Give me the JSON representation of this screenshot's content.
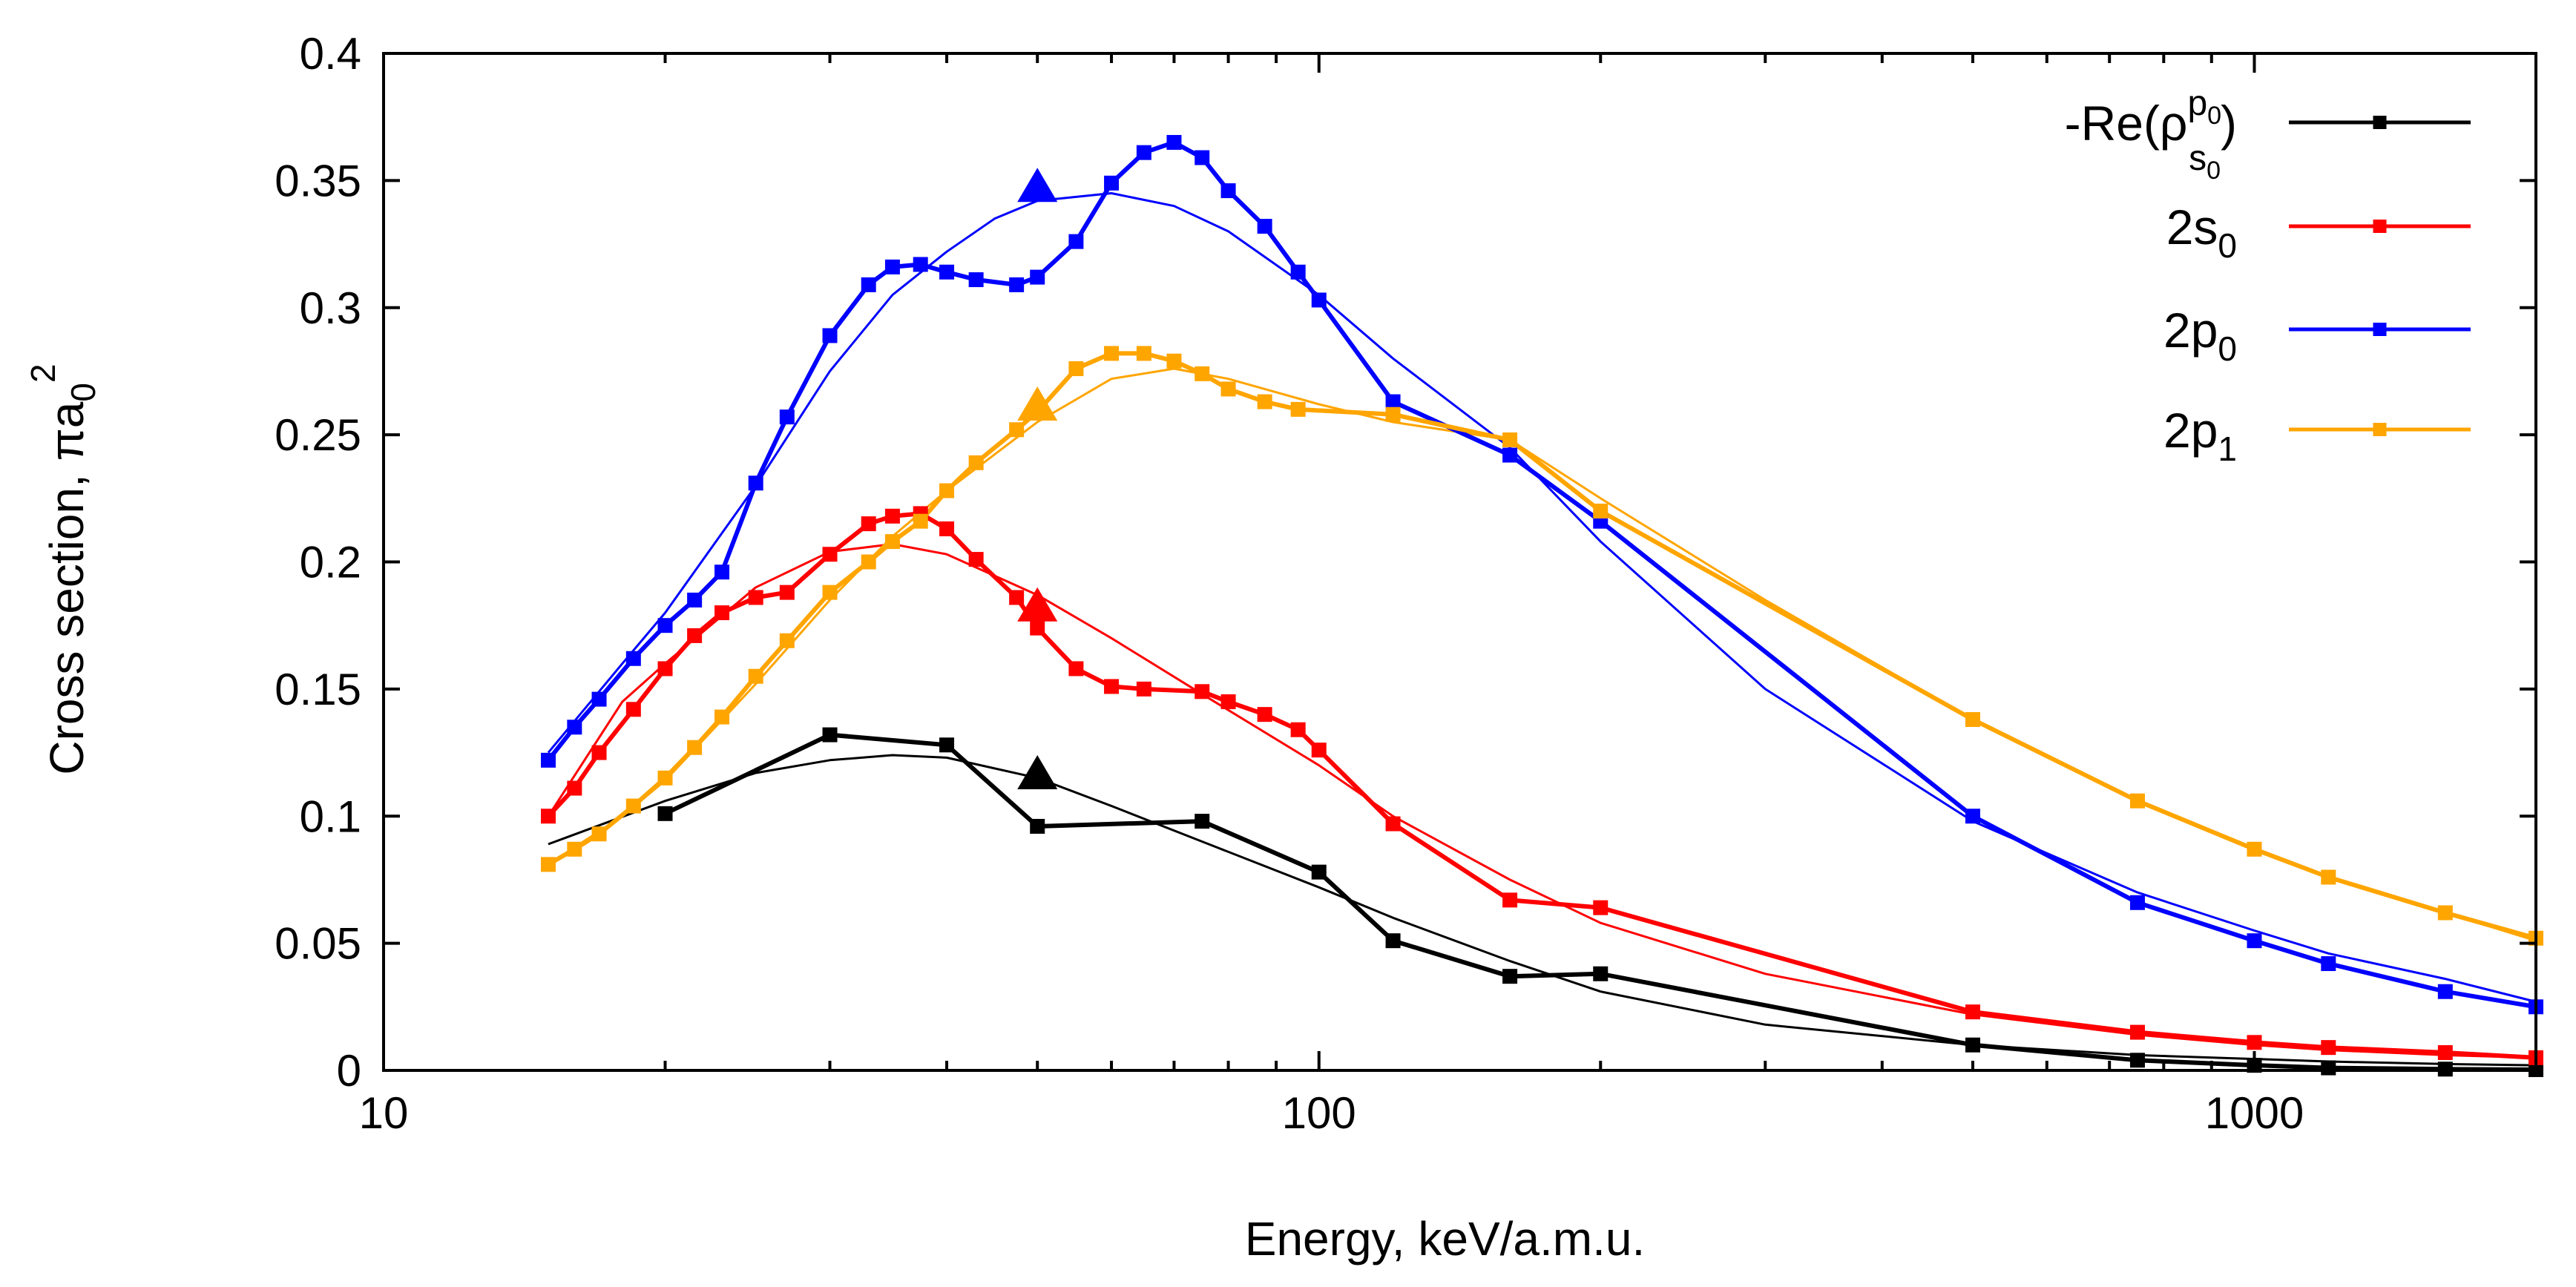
{
  "chart_data": {
    "type": "line",
    "title": "",
    "xlabel": "Energy, keV/a.m.u.",
    "ylabel_text": "Cross section, πa",
    "ylabel_sub": "0",
    "ylabel_sup": "2",
    "xscale": "log",
    "xlim": [
      10,
      2000
    ],
    "ylim": [
      0,
      0.4
    ],
    "grid": false,
    "legend_position": "top-right",
    "x_ticks": [
      {
        "value": 10,
        "label": "10"
      },
      {
        "value": 100,
        "label": "100"
      },
      {
        "value": 1000,
        "label": "1000"
      }
    ],
    "y_ticks": [
      {
        "value": 0,
        "label": "0"
      },
      {
        "value": 0.05,
        "label": "0.05"
      },
      {
        "value": 0.1,
        "label": "0.1"
      },
      {
        "value": 0.15,
        "label": "0.15"
      },
      {
        "value": 0.2,
        "label": "0.2"
      },
      {
        "value": 0.25,
        "label": "0.25"
      },
      {
        "value": 0.3,
        "label": "0.3"
      },
      {
        "value": 0.35,
        "label": "0.35"
      },
      {
        "value": 0.4,
        "label": "0.4"
      }
    ],
    "series": [
      {
        "name": "-Re(ρs0p0)",
        "legend": {
          "pre": "-Re(ρ",
          "sup": "p",
          "supsub": "0",
          "sub": "s",
          "subsub": "0",
          "post": ")"
        },
        "color": "#000000",
        "points": [
          [
            20,
            0.101
          ],
          [
            30,
            0.132
          ],
          [
            40,
            0.128
          ],
          [
            50,
            0.096
          ],
          [
            75,
            0.098
          ],
          [
            100,
            0.078
          ],
          [
            120,
            0.051
          ],
          [
            160,
            0.037
          ],
          [
            200,
            0.038
          ],
          [
            500,
            0.01
          ],
          [
            750,
            0.004
          ],
          [
            1000,
            0.002
          ],
          [
            1200,
            0.001
          ],
          [
            1600,
            0.0005
          ],
          [
            2000,
            0.0003
          ]
        ],
        "smooth": [
          [
            15,
            0.089
          ],
          [
            20,
            0.106
          ],
          [
            25,
            0.117
          ],
          [
            30,
            0.122
          ],
          [
            35,
            0.124
          ],
          [
            40,
            0.123
          ],
          [
            50,
            0.115
          ],
          [
            60,
            0.104
          ],
          [
            75,
            0.09
          ],
          [
            100,
            0.072
          ],
          [
            120,
            0.06
          ],
          [
            160,
            0.043
          ],
          [
            200,
            0.031
          ],
          [
            300,
            0.018
          ],
          [
            500,
            0.01
          ],
          [
            750,
            0.006
          ],
          [
            1000,
            0.0045
          ],
          [
            1200,
            0.0035
          ],
          [
            1600,
            0.0025
          ],
          [
            2000,
            0.002
          ]
        ],
        "marker": [
          50,
          0.117
        ]
      },
      {
        "name": "2s0",
        "legend": {
          "pre": "2s",
          "sub": "0"
        },
        "color": "#ff0000",
        "points": [
          [
            15,
            0.1
          ],
          [
            16,
            0.111
          ],
          [
            17,
            0.125
          ],
          [
            18.5,
            0.142
          ],
          [
            20,
            0.158
          ],
          [
            21.5,
            0.171
          ],
          [
            23,
            0.18
          ],
          [
            25,
            0.186
          ],
          [
            27,
            0.188
          ],
          [
            30,
            0.203
          ],
          [
            33,
            0.215
          ],
          [
            35,
            0.218
          ],
          [
            37.5,
            0.219
          ],
          [
            40,
            0.213
          ],
          [
            43,
            0.201
          ],
          [
            47.5,
            0.186
          ],
          [
            50,
            0.174
          ],
          [
            55,
            0.158
          ],
          [
            60,
            0.151
          ],
          [
            65,
            0.15
          ],
          [
            75,
            0.149
          ],
          [
            80,
            0.145
          ],
          [
            87.5,
            0.14
          ],
          [
            95,
            0.134
          ],
          [
            100,
            0.126
          ],
          [
            120,
            0.097
          ],
          [
            160,
            0.067
          ],
          [
            200,
            0.064
          ],
          [
            500,
            0.023
          ],
          [
            750,
            0.015
          ],
          [
            1000,
            0.011
          ],
          [
            1200,
            0.009
          ],
          [
            1600,
            0.007
          ],
          [
            2000,
            0.005
          ]
        ],
        "smooth": [
          [
            15,
            0.1
          ],
          [
            18,
            0.145
          ],
          [
            20,
            0.16
          ],
          [
            25,
            0.19
          ],
          [
            30,
            0.204
          ],
          [
            35,
            0.207
          ],
          [
            40,
            0.203
          ],
          [
            50,
            0.187
          ],
          [
            60,
            0.17
          ],
          [
            75,
            0.148
          ],
          [
            100,
            0.12
          ],
          [
            120,
            0.1
          ],
          [
            160,
            0.075
          ],
          [
            200,
            0.058
          ],
          [
            300,
            0.038
          ],
          [
            500,
            0.022
          ],
          [
            750,
            0.014
          ],
          [
            1000,
            0.01
          ],
          [
            1200,
            0.008
          ],
          [
            1600,
            0.006
          ],
          [
            2000,
            0.005
          ]
        ],
        "marker": [
          50,
          0.183
        ]
      },
      {
        "name": "2p0",
        "legend": {
          "pre": "2p",
          "sub": "0"
        },
        "color": "#0000ff",
        "points": [
          [
            15,
            0.122
          ],
          [
            16,
            0.135
          ],
          [
            17,
            0.146
          ],
          [
            18.5,
            0.162
          ],
          [
            20,
            0.175
          ],
          [
            21.5,
            0.185
          ],
          [
            23,
            0.196
          ],
          [
            25,
            0.231
          ],
          [
            27,
            0.257
          ],
          [
            30,
            0.289
          ],
          [
            33,
            0.309
          ],
          [
            35,
            0.316
          ],
          [
            37.5,
            0.317
          ],
          [
            40,
            0.314
          ],
          [
            43,
            0.311
          ],
          [
            47.5,
            0.309
          ],
          [
            50,
            0.312
          ],
          [
            55,
            0.326
          ],
          [
            60,
            0.349
          ],
          [
            65,
            0.361
          ],
          [
            70,
            0.365
          ],
          [
            75,
            0.359
          ],
          [
            80,
            0.346
          ],
          [
            87.5,
            0.332
          ],
          [
            95,
            0.314
          ],
          [
            100,
            0.303
          ],
          [
            120,
            0.263
          ],
          [
            160,
            0.242
          ],
          [
            200,
            0.216
          ],
          [
            500,
            0.1
          ],
          [
            750,
            0.066
          ],
          [
            1000,
            0.051
          ],
          [
            1200,
            0.042
          ],
          [
            1600,
            0.031
          ],
          [
            2000,
            0.025
          ]
        ],
        "smooth": [
          [
            15,
            0.125
          ],
          [
            18,
            0.16
          ],
          [
            20,
            0.18
          ],
          [
            25,
            0.23
          ],
          [
            30,
            0.275
          ],
          [
            35,
            0.305
          ],
          [
            40,
            0.322
          ],
          [
            45,
            0.335
          ],
          [
            50,
            0.342
          ],
          [
            60,
            0.345
          ],
          [
            70,
            0.34
          ],
          [
            80,
            0.33
          ],
          [
            100,
            0.305
          ],
          [
            120,
            0.28
          ],
          [
            160,
            0.245
          ],
          [
            200,
            0.208
          ],
          [
            300,
            0.15
          ],
          [
            500,
            0.098
          ],
          [
            750,
            0.07
          ],
          [
            1000,
            0.055
          ],
          [
            1200,
            0.046
          ],
          [
            1600,
            0.036
          ],
          [
            2000,
            0.027
          ]
        ],
        "marker": [
          50,
          0.348
        ]
      },
      {
        "name": "2p1",
        "legend": {
          "pre": "2p",
          "sub": "1"
        },
        "color": "#ffa500",
        "points": [
          [
            15,
            0.081
          ],
          [
            16,
            0.087
          ],
          [
            17,
            0.093
          ],
          [
            18.5,
            0.104
          ],
          [
            20,
            0.115
          ],
          [
            21.5,
            0.127
          ],
          [
            23,
            0.139
          ],
          [
            25,
            0.155
          ],
          [
            27,
            0.169
          ],
          [
            30,
            0.188
          ],
          [
            33,
            0.2
          ],
          [
            35,
            0.208
          ],
          [
            37.5,
            0.216
          ],
          [
            40,
            0.228
          ],
          [
            43,
            0.239
          ],
          [
            47.5,
            0.252
          ],
          [
            50,
            0.259
          ],
          [
            55,
            0.276
          ],
          [
            60,
            0.282
          ],
          [
            65,
            0.282
          ],
          [
            70,
            0.279
          ],
          [
            75,
            0.274
          ],
          [
            80,
            0.268
          ],
          [
            87.5,
            0.263
          ],
          [
            95,
            0.26
          ],
          [
            120,
            0.258
          ],
          [
            160,
            0.248
          ],
          [
            200,
            0.22
          ],
          [
            500,
            0.138
          ],
          [
            750,
            0.106
          ],
          [
            1000,
            0.087
          ],
          [
            1200,
            0.076
          ],
          [
            1600,
            0.062
          ],
          [
            2000,
            0.052
          ]
        ],
        "smooth": [
          [
            15,
            0.081
          ],
          [
            18,
            0.1
          ],
          [
            20,
            0.114
          ],
          [
            25,
            0.152
          ],
          [
            30,
            0.185
          ],
          [
            35,
            0.21
          ],
          [
            40,
            0.228
          ],
          [
            50,
            0.255
          ],
          [
            60,
            0.272
          ],
          [
            70,
            0.276
          ],
          [
            80,
            0.272
          ],
          [
            100,
            0.262
          ],
          [
            120,
            0.255
          ],
          [
            160,
            0.248
          ],
          [
            200,
            0.225
          ],
          [
            300,
            0.185
          ],
          [
            500,
            0.138
          ],
          [
            750,
            0.106
          ],
          [
            1000,
            0.087
          ],
          [
            1200,
            0.076
          ],
          [
            1600,
            0.062
          ],
          [
            2000,
            0.051
          ]
        ],
        "marker": [
          50,
          0.262
        ]
      }
    ]
  }
}
